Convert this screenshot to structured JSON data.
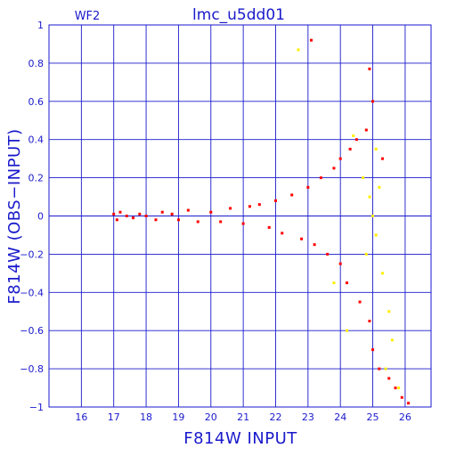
{
  "chart_data": {
    "type": "scatter",
    "title": "lmc_u5dd01",
    "panel_label": "WF2",
    "xlabel": "F814W INPUT",
    "ylabel": "F814W (OBS−INPUT)",
    "xlim": [
      15.0,
      26.8
    ],
    "ylim": [
      -1,
      1
    ],
    "x_ticks": [
      16,
      17,
      18,
      19,
      20,
      21,
      22,
      23,
      24,
      25,
      26
    ],
    "y_ticks": [
      -1,
      -0.8,
      -0.6,
      -0.4,
      -0.2,
      0,
      0.2,
      0.4,
      0.6,
      0.8,
      1
    ],
    "x_tick_labels": [
      "16",
      "17",
      "18",
      "19",
      "20",
      "21",
      "22",
      "23",
      "24",
      "25",
      "26"
    ],
    "y_tick_labels": [
      "−1",
      "−0.8",
      "−0.6",
      "−0.4",
      "−0.2",
      "0",
      "0.2",
      "0.4",
      "0.6",
      "0.8",
      "1"
    ],
    "grid": true,
    "colors": {
      "axes": "#1a1acc",
      "grid": "#1a1acc",
      "series_main": "#ff0000",
      "series_secondary": "#ffee00"
    },
    "series": [
      {
        "color": "#ff0000",
        "points": [
          [
            17.0,
            0.01
          ],
          [
            17.1,
            -0.02
          ],
          [
            17.2,
            0.02
          ],
          [
            17.4,
            0.0
          ],
          [
            17.6,
            -0.01
          ],
          [
            17.8,
            0.01
          ],
          [
            18.0,
            0.0
          ],
          [
            18.3,
            -0.02
          ],
          [
            18.5,
            0.02
          ],
          [
            18.8,
            0.01
          ],
          [
            19.0,
            -0.02
          ],
          [
            19.3,
            0.03
          ],
          [
            19.6,
            -0.03
          ],
          [
            20.0,
            0.02
          ],
          [
            20.3,
            -0.03
          ],
          [
            20.6,
            0.04
          ],
          [
            21.0,
            -0.04
          ],
          [
            21.2,
            0.05
          ],
          [
            21.5,
            0.06
          ],
          [
            21.8,
            -0.06
          ],
          [
            22.0,
            0.08
          ],
          [
            22.2,
            -0.09
          ],
          [
            22.5,
            0.11
          ],
          [
            22.8,
            -0.12
          ],
          [
            23.0,
            0.15
          ],
          [
            23.2,
            -0.15
          ],
          [
            23.4,
            0.2
          ],
          [
            23.6,
            -0.2
          ],
          [
            23.8,
            0.25
          ],
          [
            24.0,
            0.3
          ],
          [
            24.0,
            -0.25
          ],
          [
            24.2,
            -0.35
          ],
          [
            24.3,
            0.35
          ],
          [
            24.5,
            0.4
          ],
          [
            24.6,
            -0.45
          ],
          [
            24.8,
            0.45
          ],
          [
            24.9,
            -0.55
          ],
          [
            25.0,
            0.6
          ],
          [
            25.0,
            -0.7
          ],
          [
            25.2,
            -0.8
          ],
          [
            25.3,
            0.3
          ],
          [
            25.5,
            -0.85
          ],
          [
            25.7,
            -0.9
          ],
          [
            25.9,
            -0.95
          ],
          [
            26.1,
            -0.98
          ],
          [
            24.9,
            0.77
          ],
          [
            23.1,
            0.92
          ]
        ]
      },
      {
        "color": "#ffee00",
        "points": [
          [
            24.7,
            0.2
          ],
          [
            24.9,
            0.1
          ],
          [
            25.0,
            0.0
          ],
          [
            25.1,
            -0.1
          ],
          [
            25.2,
            0.15
          ],
          [
            24.8,
            -0.2
          ],
          [
            25.3,
            -0.3
          ],
          [
            25.5,
            -0.5
          ],
          [
            25.6,
            -0.65
          ],
          [
            25.4,
            -0.8
          ],
          [
            25.8,
            -0.9
          ],
          [
            22.7,
            0.87
          ],
          [
            24.4,
            0.42
          ],
          [
            23.8,
            -0.35
          ],
          [
            24.2,
            -0.6
          ],
          [
            25.1,
            0.35
          ]
        ]
      }
    ]
  }
}
